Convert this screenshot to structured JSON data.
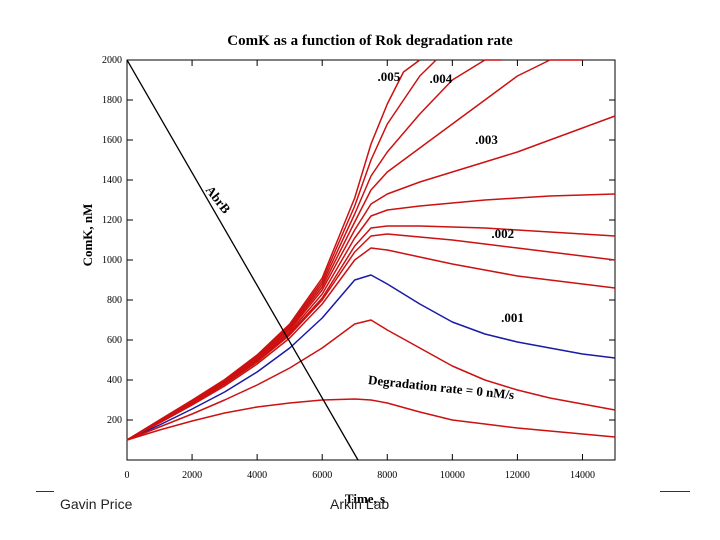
{
  "footer": {
    "left": "Gavin Price",
    "right": "Arkin Lab"
  },
  "chart_data": {
    "type": "line",
    "title": "ComK as a function of Rok degradation rate",
    "xlabel": "Time, s",
    "ylabel": "ComK, nM",
    "xlim": [
      0,
      15000
    ],
    "ylim": [
      0,
      2000
    ],
    "xticks": [
      "0",
      "2000",
      "4000",
      "6000",
      "8000",
      "10000",
      "12000",
      "14000"
    ],
    "yticks": [
      "200",
      "400",
      "600",
      "800",
      "1000",
      "1200",
      "1400",
      "1600",
      "1800",
      "2000"
    ],
    "grid": false,
    "colors": {
      "red": "#cc1111",
      "blue": "#1a1aa6",
      "black": "#000000"
    },
    "annotations": [
      {
        "text": ".005",
        "x": 7700,
        "y": 1895
      },
      {
        "text": ".004",
        "x": 9300,
        "y": 1885
      },
      {
        "text": ".003",
        "x": 10700,
        "y": 1580
      },
      {
        "text": ".002",
        "x": 11200,
        "y": 1110
      },
      {
        "text": ".001",
        "x": 11500,
        "y": 690
      },
      {
        "text": "Degradation rate = 0 nM/s",
        "x": 7400,
        "y": 380,
        "rotate": 6
      },
      {
        "text": "AbrB",
        "x": 2400,
        "y": 1350,
        "rotate": 52
      }
    ],
    "series": [
      {
        "color": "blue",
        "x": [
          0,
          1000,
          2000,
          3000,
          4000,
          5000,
          6000,
          7000,
          7500,
          8000,
          9000,
          10000,
          11000,
          12000,
          13000,
          14000,
          15000
        ],
        "y": [
          100,
          175,
          255,
          340,
          440,
          560,
          710,
          900,
          925,
          880,
          780,
          690,
          630,
          590,
          560,
          530,
          510
        ]
      },
      {
        "color": "red",
        "x": [
          0,
          1000,
          2000,
          3000,
          4000,
          5000,
          6000,
          7000,
          7500,
          8000,
          9000,
          10000,
          11000,
          12000,
          13000,
          14000,
          15000
        ],
        "y": [
          100,
          150,
          195,
          235,
          265,
          285,
          300,
          305,
          300,
          285,
          240,
          200,
          180,
          160,
          145,
          130,
          115
        ]
      },
      {
        "color": "red",
        "x": [
          0,
          1000,
          2000,
          3000,
          4000,
          5000,
          6000,
          7000,
          7500,
          8000,
          9000,
          10000,
          11000,
          12000,
          13000,
          14000,
          15000
        ],
        "y": [
          100,
          165,
          230,
          300,
          375,
          460,
          560,
          680,
          700,
          650,
          560,
          470,
          400,
          350,
          310,
          280,
          250
        ]
      },
      {
        "color": "red",
        "x": [
          0,
          1000,
          2000,
          3000,
          4000,
          5000,
          6000,
          7000,
          7500,
          8000,
          9000,
          10000,
          11000,
          12000,
          13000,
          14000,
          15000
        ],
        "y": [
          100,
          185,
          275,
          370,
          480,
          610,
          780,
          1000,
          1060,
          1050,
          1015,
          980,
          950,
          920,
          900,
          880,
          860
        ]
      },
      {
        "color": "red",
        "x": [
          0,
          1000,
          2000,
          3000,
          4000,
          5000,
          6000,
          7000,
          7500,
          8000,
          9000,
          10000,
          11000,
          12000,
          13000,
          14000,
          15000
        ],
        "y": [
          100,
          188,
          280,
          378,
          490,
          625,
          800,
          1040,
          1120,
          1130,
          1115,
          1100,
          1080,
          1060,
          1040,
          1020,
          1000
        ]
      },
      {
        "color": "red",
        "x": [
          0,
          1000,
          2000,
          3000,
          4000,
          5000,
          6000,
          7000,
          7500,
          8000,
          9000,
          10000,
          11000,
          12000,
          13000,
          14000,
          15000
        ],
        "y": [
          100,
          190,
          283,
          382,
          495,
          632,
          810,
          1070,
          1160,
          1170,
          1170,
          1165,
          1160,
          1150,
          1140,
          1130,
          1120
        ]
      },
      {
        "color": "red",
        "x": [
          0,
          1000,
          2000,
          3000,
          4000,
          5000,
          6000,
          7000,
          7500,
          8000,
          9000,
          10000,
          11000,
          12000,
          13000,
          14000,
          15000
        ],
        "y": [
          100,
          192,
          286,
          386,
          500,
          640,
          830,
          1110,
          1220,
          1250,
          1270,
          1285,
          1300,
          1310,
          1320,
          1325,
          1330
        ]
      },
      {
        "color": "red",
        "x": [
          0,
          1000,
          2000,
          3000,
          4000,
          5000,
          6000,
          7000,
          7500,
          8000,
          9000,
          10000,
          11000,
          12000,
          13000,
          14000,
          15000
        ],
        "y": [
          100,
          194,
          289,
          390,
          505,
          650,
          850,
          1150,
          1280,
          1330,
          1390,
          1440,
          1490,
          1540,
          1600,
          1660,
          1720
        ]
      },
      {
        "color": "red",
        "x": [
          0,
          1000,
          2000,
          3000,
          4000,
          5000,
          6000,
          7000,
          7500,
          8000,
          9000,
          10000,
          11000,
          12000,
          13000,
          14000
        ],
        "y": [
          100,
          196,
          292,
          394,
          510,
          658,
          865,
          1190,
          1350,
          1440,
          1560,
          1680,
          1800,
          1920,
          2000,
          2000
        ]
      },
      {
        "color": "red",
        "x": [
          0,
          1000,
          2000,
          3000,
          4000,
          5000,
          6000,
          7000,
          7500,
          8000,
          9000,
          10000,
          11000,
          11500
        ],
        "y": [
          100,
          198,
          295,
          397,
          515,
          665,
          880,
          1230,
          1420,
          1540,
          1730,
          1900,
          2000,
          2000
        ]
      },
      {
        "color": "red",
        "x": [
          0,
          1000,
          2000,
          3000,
          4000,
          5000,
          6000,
          7000,
          7500,
          8000,
          9000,
          9500
        ],
        "y": [
          100,
          199,
          297,
          400,
          520,
          672,
          895,
          1270,
          1500,
          1680,
          1920,
          2000
        ]
      },
      {
        "color": "red",
        "x": [
          0,
          1000,
          2000,
          3000,
          4000,
          5000,
          6000,
          7000,
          7500,
          8000,
          8500,
          9000
        ],
        "y": [
          100,
          200,
          299,
          402,
          525,
          680,
          910,
          1310,
          1580,
          1780,
          1940,
          2000
        ]
      },
      {
        "color": "black",
        "x": [
          0,
          7100
        ],
        "y": [
          2000,
          0
        ]
      }
    ]
  }
}
